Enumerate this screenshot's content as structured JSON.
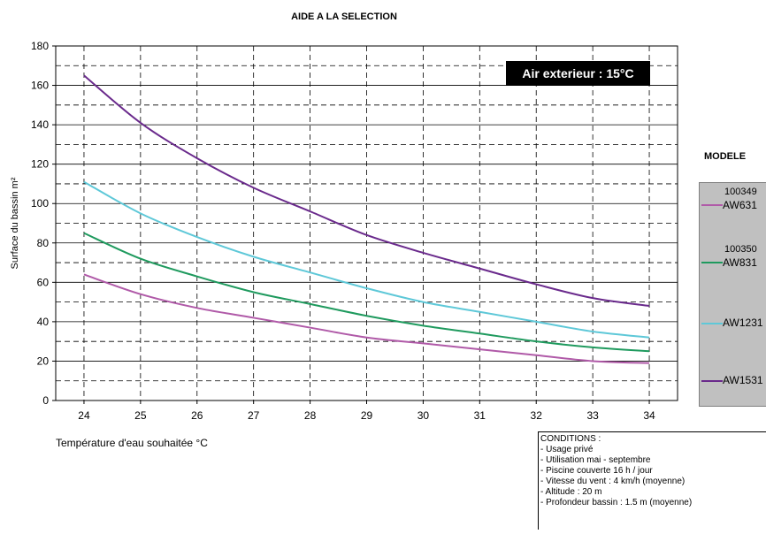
{
  "chart_data": {
    "type": "line",
    "title": "AIDE A LA SELECTION",
    "xlabel": "Température d'eau souhaitée °C",
    "ylabel": "Surface du bassin m²",
    "x": [
      24,
      25,
      26,
      27,
      28,
      29,
      30,
      31,
      32,
      33,
      34
    ],
    "xlim": [
      23.5,
      34.5
    ],
    "ylim": [
      0,
      180
    ],
    "y_ticks": [
      0,
      20,
      40,
      60,
      80,
      100,
      120,
      140,
      160,
      180
    ],
    "grid": true,
    "annotation": "Air exterieur : 15°C",
    "series": [
      {
        "name": "AW631",
        "color": "#b05aa8",
        "values": [
          64,
          54,
          47,
          42,
          37,
          32,
          29,
          26,
          23,
          20,
          19
        ]
      },
      {
        "name": "AW831",
        "color": "#1f9a5e",
        "values": [
          85,
          72,
          63,
          55,
          49,
          43,
          38,
          34,
          30,
          27,
          25
        ]
      },
      {
        "name": "AW1231",
        "color": "#5ec8d8",
        "values": [
          111,
          95,
          83,
          73,
          65,
          57,
          50,
          45,
          40,
          35,
          32
        ]
      },
      {
        "name": "AW1531",
        "color": "#6a2a8c",
        "values": [
          165,
          141,
          123,
          108,
          96,
          84,
          75,
          67,
          59,
          52,
          48
        ]
      }
    ],
    "legend": {
      "title": "MODELE",
      "entries": [
        {
          "code": "100349",
          "label": "AW631"
        },
        {
          "code": "100350",
          "label": "AW831"
        },
        {
          "code": "",
          "label": "AW1231"
        },
        {
          "code": "",
          "label": "AW1531"
        }
      ]
    },
    "conditions": [
      "CONDITIONS :",
      "- Usage privé",
      "- Utilisation mai - septembre",
      "- Piscine couverte 16 h / jour",
      "- Vitesse du vent :  4 km/h  (moyenne)",
      "- Altitude : 20 m",
      "- Profondeur bassin : 1.5 m (moyenne)"
    ]
  }
}
